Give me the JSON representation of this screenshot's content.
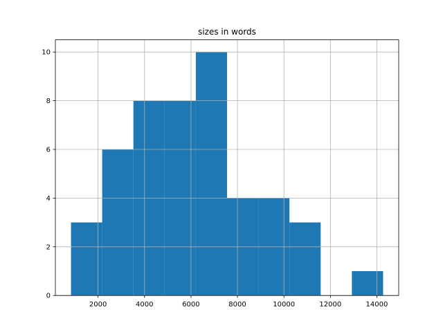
{
  "chart_data": {
    "type": "histogram",
    "title": "sizes in words",
    "bins": [
      836,
      2179,
      3522,
      4866,
      6209,
      7552,
      8895,
      10238,
      11582,
      12925,
      14268
    ],
    "values": [
      3,
      6,
      8,
      8,
      10,
      4,
      4,
      3,
      0,
      1
    ],
    "color": "#1f77b4",
    "xlim": [
      164,
      14940
    ],
    "xticks": [
      2000,
      4000,
      6000,
      8000,
      10000,
      12000,
      14000
    ],
    "ylim": [
      0,
      10.5
    ],
    "yticks": [
      0,
      2,
      4,
      6,
      8,
      10
    ],
    "grid": true
  }
}
